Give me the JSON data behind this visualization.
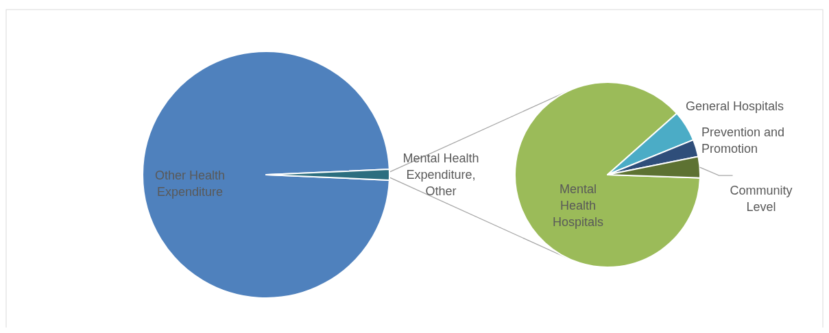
{
  "chart_data": [
    {
      "type": "pie",
      "categories": [
        "Other Health Expenditure",
        "Mental Health Expenditure, Other"
      ],
      "values": [
        98.6,
        1.4
      ],
      "colors": [
        "#4f81bd",
        "#2c6e7f"
      ]
    },
    {
      "type": "pie",
      "categories": [
        "Mental Health Hospitals",
        "General Hospitals",
        "Prevention and Promotion",
        "Community Level"
      ],
      "values": [
        87.9,
        5.4,
        3,
        3.7
      ],
      "colors": [
        "#9bbb59",
        "#4bacc6",
        "#2f4e7a",
        "#5d7232"
      ]
    }
  ]
}
